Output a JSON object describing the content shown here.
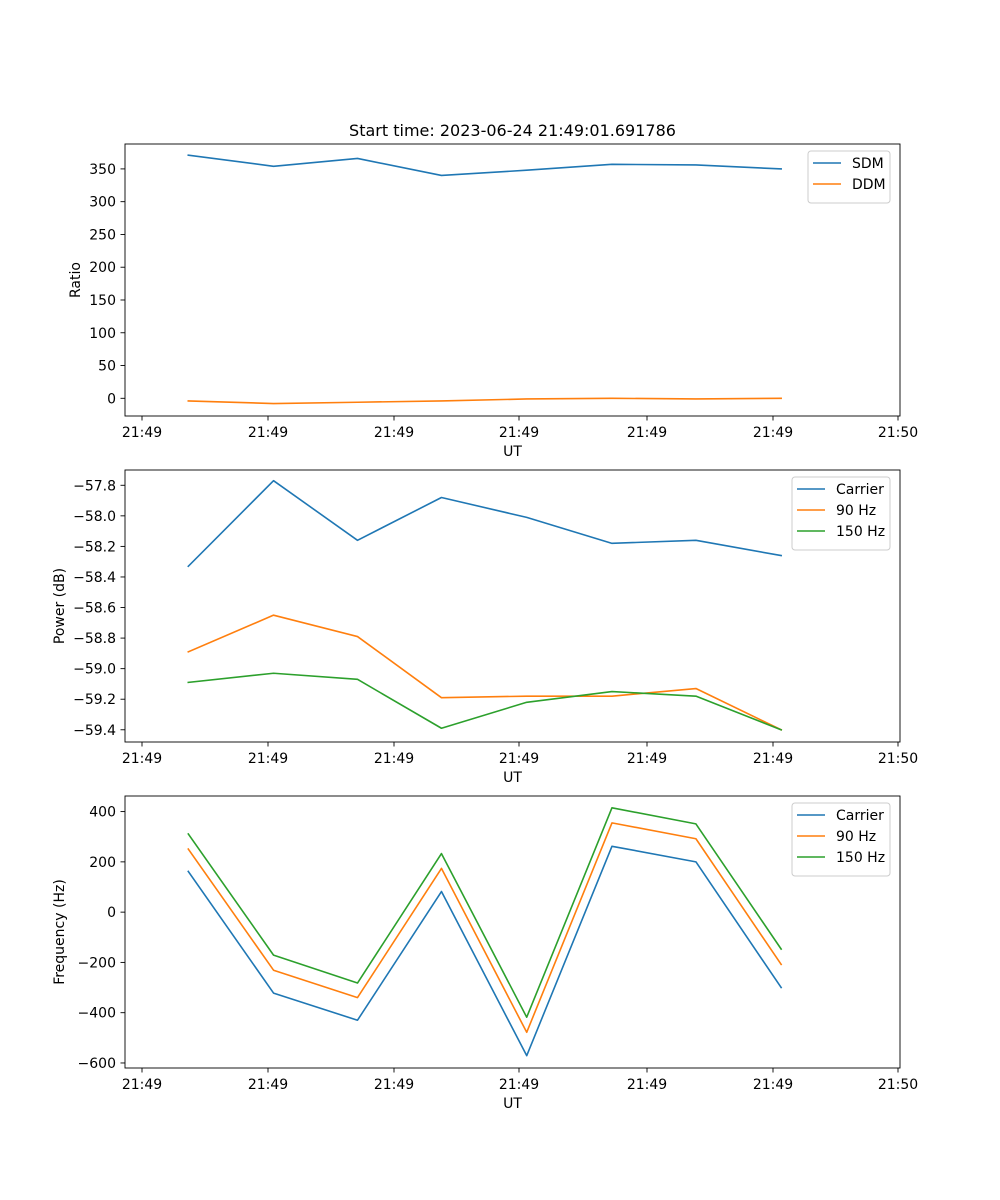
{
  "figure_title": "Start time: 2023-06-24 21:49:01.691786",
  "chart_data": [
    {
      "type": "line",
      "title": "Start time: 2023-06-24 21:49:01.691786",
      "xlabel": "UT",
      "ylabel": "Ratio",
      "xtick_labels": [
        "21:49",
        "21:49",
        "21:49",
        "21:49",
        "21:49",
        "21:49",
        "21:50"
      ],
      "x": [
        "21:49:01.69",
        "21:49:02.35",
        "21:49:03.00",
        "21:49:03.65",
        "21:49:04.31",
        "21:49:04.97",
        "21:49:05.62",
        "21:49:06.28"
      ],
      "xlim": [
        "21:49:01.2",
        "21:49:07.2"
      ],
      "ylim": [
        -27,
        388
      ],
      "yticks": [
        0,
        50,
        100,
        150,
        200,
        250,
        300,
        350
      ],
      "legend": "upper right",
      "grid": false,
      "series": [
        {
          "name": "SDM",
          "color": "#1f77b4",
          "values": [
            371,
            354,
            366,
            340,
            348,
            357,
            356,
            350
          ]
        },
        {
          "name": "DDM",
          "color": "#ff7f0e",
          "values": [
            -4,
            -8,
            -6,
            -4,
            -1,
            0,
            -1,
            0
          ]
        }
      ]
    },
    {
      "type": "line",
      "title": "",
      "xlabel": "UT",
      "ylabel": "Power (dB)",
      "xtick_labels": [
        "21:49",
        "21:49",
        "21:49",
        "21:49",
        "21:49",
        "21:49",
        "21:50"
      ],
      "x": [
        "21:49:01.69",
        "21:49:02.35",
        "21:49:03.00",
        "21:49:03.65",
        "21:49:04.31",
        "21:49:04.97",
        "21:49:05.62",
        "21:49:06.28"
      ],
      "xlim": [
        "21:49:01.2",
        "21:49:07.2"
      ],
      "ylim": [
        -59.48,
        -57.7
      ],
      "yticks": [
        -59.4,
        -59.2,
        -59.0,
        -58.8,
        -58.6,
        -58.4,
        -58.2,
        -58.0,
        -57.8
      ],
      "ytick_labels": [
        "−59.4",
        "−59.2",
        "−59.0",
        "−58.8",
        "−58.6",
        "−58.4",
        "−58.2",
        "−58.0",
        "−57.8"
      ],
      "legend": "upper right",
      "grid": false,
      "series": [
        {
          "name": "Carrier",
          "color": "#1f77b4",
          "values": [
            -58.33,
            -57.77,
            -58.16,
            -57.88,
            -58.01,
            -58.18,
            -58.16,
            -58.26
          ]
        },
        {
          "name": "90 Hz",
          "color": "#ff7f0e",
          "values": [
            -58.89,
            -58.65,
            -58.79,
            -59.19,
            -59.18,
            -59.18,
            -59.13,
            -59.4
          ]
        },
        {
          "name": "150 Hz",
          "color": "#2ca02c",
          "values": [
            -59.09,
            -59.03,
            -59.07,
            -59.39,
            -59.22,
            -59.15,
            -59.18,
            -59.4
          ]
        }
      ]
    },
    {
      "type": "line",
      "title": "",
      "xlabel": "UT",
      "ylabel": "Frequency (Hz)",
      "xtick_labels": [
        "21:49",
        "21:49",
        "21:49",
        "21:49",
        "21:49",
        "21:49",
        "21:50"
      ],
      "x": [
        "21:49:01.69",
        "21:49:02.35",
        "21:49:03.00",
        "21:49:03.65",
        "21:49:04.31",
        "21:49:04.97",
        "21:49:05.62",
        "21:49:06.28"
      ],
      "xlim": [
        "21:49:01.2",
        "21:49:07.2"
      ],
      "ylim": [
        -620,
        462
      ],
      "yticks": [
        -600,
        -400,
        -200,
        0,
        200,
        400
      ],
      "ytick_labels": [
        "−600",
        "−400",
        "−200",
        "0",
        "200",
        "400"
      ],
      "legend": "upper right",
      "grid": false,
      "series": [
        {
          "name": "Carrier",
          "color": "#1f77b4",
          "values": [
            162,
            -322,
            -430,
            82,
            -571,
            262,
            200,
            -300
          ]
        },
        {
          "name": "90 Hz",
          "color": "#ff7f0e",
          "values": [
            251,
            -231,
            -340,
            174,
            -478,
            355,
            292,
            -208
          ]
        },
        {
          "name": "150 Hz",
          "color": "#2ca02c",
          "values": [
            311,
            -171,
            -282,
            233,
            -418,
            415,
            351,
            -147
          ]
        }
      ]
    }
  ]
}
